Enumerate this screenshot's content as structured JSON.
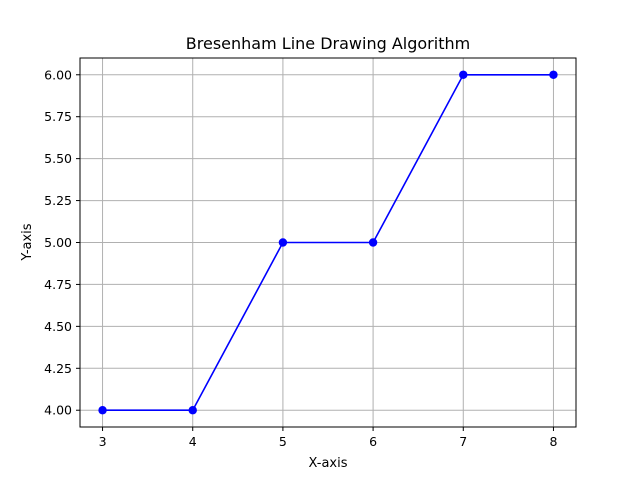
{
  "chart_data": {
    "type": "line",
    "title": "Bresenham Line Drawing Algorithm",
    "xlabel": "X-axis",
    "ylabel": "Y-axis",
    "xlim": [
      2.75,
      8.25
    ],
    "ylim": [
      3.9,
      6.1
    ],
    "x_ticks": [
      3,
      4,
      5,
      6,
      7,
      8
    ],
    "x_tick_labels": [
      "3",
      "4",
      "5",
      "6",
      "7",
      "8"
    ],
    "y_ticks": [
      4.0,
      4.25,
      4.5,
      4.75,
      5.0,
      5.25,
      5.5,
      5.75,
      6.0
    ],
    "y_tick_labels": [
      "4.00",
      "4.25",
      "4.50",
      "4.75",
      "5.00",
      "5.25",
      "5.50",
      "5.75",
      "6.00"
    ],
    "grid": true,
    "series": [
      {
        "x": [
          3,
          4,
          5,
          6,
          7,
          8
        ],
        "y": [
          4,
          4,
          5,
          5,
          6,
          6
        ],
        "color": "#0000ff",
        "marker": "circle"
      }
    ]
  }
}
